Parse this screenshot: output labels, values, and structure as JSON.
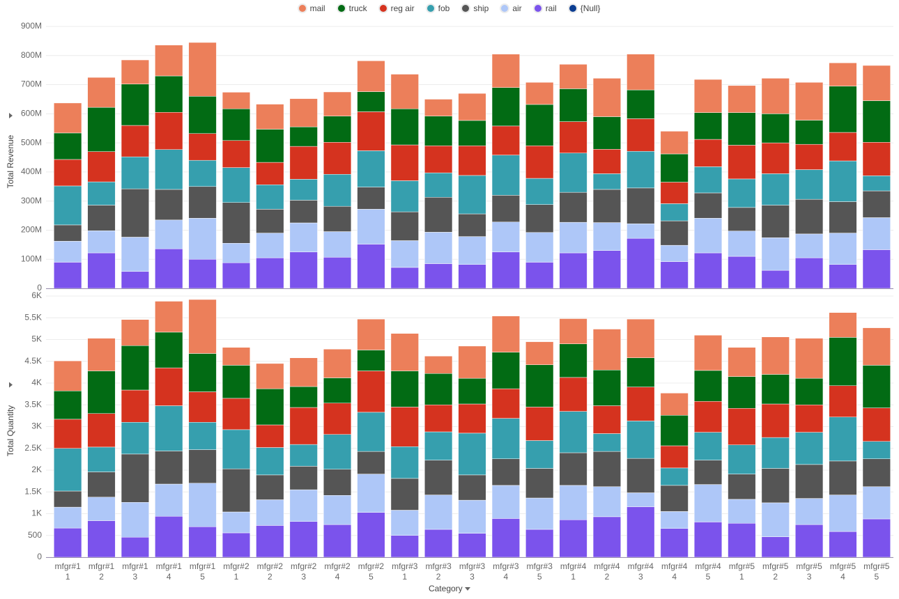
{
  "chart_data": [
    {
      "type": "bar",
      "stacked": true,
      "ylabel": "Total Revenue",
      "ylim": [
        0,
        900
      ],
      "yticks": [
        0,
        {
          "value": 100,
          "label": "100M"
        },
        {
          "value": 200,
          "label": "200M"
        },
        {
          "value": 300,
          "label": "300M"
        },
        {
          "value": 400,
          "label": "400M"
        },
        {
          "value": 500,
          "label": "500M"
        },
        {
          "value": 600,
          "label": "600M"
        },
        {
          "value": 700,
          "label": "700M"
        },
        {
          "value": 800,
          "label": "800M"
        },
        {
          "value": 900,
          "label": "900M"
        }
      ],
      "grid": true,
      "series": [
        {
          "name": "mail",
          "color": "#ec7f5a",
          "values": [
            103,
            103,
            83,
            106,
            185,
            57,
            86,
            97,
            83,
            106,
            119,
            58,
            93,
            115,
            76,
            84,
            132,
            123,
            78,
            114,
            93,
            122,
            130,
            80,
            121
          ]
        },
        {
          "name": "truck",
          "color": "#026b14",
          "values": [
            91,
            152,
            142,
            125,
            128,
            109,
            114,
            67,
            90,
            69,
            124,
            102,
            87,
            132,
            142,
            113,
            112,
            99,
            97,
            92,
            112,
            100,
            83,
            159,
            143
          ]
        },
        {
          "name": "reg air",
          "color": "#d5331f",
          "values": [
            91,
            104,
            108,
            128,
            92,
            93,
            77,
            113,
            110,
            134,
            123,
            93,
            102,
            100,
            112,
            108,
            84,
            112,
            74,
            94,
            116,
            106,
            87,
            98,
            115
          ]
        },
        {
          "name": "fob",
          "color": "#369fae",
          "values": [
            134,
            80,
            110,
            137,
            90,
            120,
            84,
            72,
            110,
            125,
            107,
            84,
            132,
            138,
            90,
            135,
            54,
            126,
            59,
            90,
            98,
            108,
            102,
            140,
            52
          ]
        },
        {
          "name": "ship",
          "color": "#555555",
          "values": [
            56,
            88,
            166,
            105,
            109,
            140,
            82,
            78,
            87,
            76,
            99,
            120,
            78,
            92,
            96,
            103,
            114,
            123,
            84,
            87,
            81,
            112,
            119,
            108,
            92
          ]
        },
        {
          "name": "air",
          "color": "#aec7f8",
          "values": [
            72,
            76,
            118,
            99,
            141,
            67,
            85,
            100,
            88,
            120,
            92,
            108,
            96,
            103,
            102,
            105,
            96,
            50,
            56,
            119,
            87,
            112,
            82,
            108,
            110
          ]
        },
        {
          "name": "rail",
          "color": "#7b53ec",
          "values": [
            90,
            122,
            58,
            136,
            100,
            88,
            105,
            125,
            107,
            152,
            72,
            85,
            82,
            125,
            90,
            122,
            130,
            172,
            92,
            122,
            110,
            62,
            105,
            82,
            133
          ]
        },
        {
          "name": "{Null}",
          "color": "#0b3d91",
          "values": [
            null,
            null,
            null,
            null,
            null,
            null,
            null,
            null,
            null,
            null,
            null,
            null,
            null,
            null,
            null,
            null,
            null,
            null,
            null,
            null,
            null,
            null,
            null,
            null,
            null
          ]
        }
      ]
    },
    {
      "type": "bar",
      "stacked": true,
      "ylabel": "Total Quantity",
      "xlabel": "Category",
      "categories": [
        "mfgr#1 1",
        "mfgr#1 2",
        "mfgr#1 3",
        "mfgr#1 4",
        "mfgr#1 5",
        "mfgr#2 1",
        "mfgr#2 2",
        "mfgr#2 3",
        "mfgr#2 4",
        "mfgr#2 5",
        "mfgr#3 1",
        "mfgr#3 2",
        "mfgr#3 3",
        "mfgr#3 4",
        "mfgr#3 5",
        "mfgr#4 1",
        "mfgr#4 2",
        "mfgr#4 3",
        "mfgr#4 4",
        "mfgr#4 5",
        "mfgr#5 1",
        "mfgr#5 2",
        "mfgr#5 3",
        "mfgr#5 4",
        "mfgr#5 5"
      ],
      "ylim": [
        0,
        6000
      ],
      "yticks": [
        0,
        500,
        {
          "value": 1000,
          "label": "1K"
        },
        {
          "value": 1500,
          "label": "1.5K"
        },
        {
          "value": 2000,
          "label": "2K"
        },
        {
          "value": 2500,
          "label": "2.5K"
        },
        {
          "value": 3000,
          "label": "3K"
        },
        {
          "value": 3500,
          "label": "3.5K"
        },
        {
          "value": 4000,
          "label": "4K"
        },
        {
          "value": 4500,
          "label": "4.5K"
        },
        {
          "value": 5000,
          "label": "5K"
        },
        {
          "value": 5500,
          "label": "5.5K"
        },
        {
          "value": 6000,
          "label": "6K"
        }
      ],
      "grid": true,
      "series": [
        {
          "values": [
            690,
            750,
            600,
            710,
            1240,
            410,
            580,
            660,
            660,
            710,
            860,
            400,
            740,
            830,
            530,
            580,
            940,
            890,
            510,
            810,
            670,
            860,
            920,
            570,
            860
          ]
        },
        {
          "values": [
            650,
            980,
            1020,
            820,
            880,
            760,
            830,
            480,
            580,
            480,
            830,
            720,
            590,
            840,
            970,
            770,
            820,
            670,
            700,
            710,
            730,
            680,
            610,
            1110,
            980
          ]
        },
        {
          "values": [
            670,
            770,
            740,
            870,
            700,
            720,
            520,
            850,
            720,
            950,
            910,
            620,
            670,
            680,
            770,
            780,
            640,
            780,
            510,
            710,
            840,
            770,
            630,
            720,
            770
          ]
        },
        {
          "values": [
            980,
            570,
            730,
            1040,
            630,
            900,
            630,
            500,
            800,
            900,
            730,
            650,
            960,
            930,
            640,
            950,
            410,
            860,
            400,
            640,
            670,
            710,
            740,
            1010,
            400
          ]
        },
        {
          "values": [
            370,
            580,
            1110,
            760,
            770,
            990,
            570,
            540,
            600,
            520,
            730,
            800,
            580,
            610,
            680,
            750,
            810,
            790,
            600,
            560,
            580,
            790,
            780,
            780,
            640
          ]
        },
        {
          "values": [
            480,
            540,
            800,
            740,
            1000,
            480,
            590,
            730,
            670,
            880,
            580,
            790,
            760,
            760,
            720,
            790,
            690,
            320,
            390,
            860,
            550,
            780,
            600,
            840,
            740
          ]
        },
        {
          "values": [
            670,
            840,
            460,
            940,
            700,
            560,
            730,
            820,
            750,
            1030,
            500,
            640,
            550,
            890,
            640,
            860,
            930,
            1160,
            660,
            810,
            780,
            470,
            750,
            590,
            880
          ]
        },
        {
          "values": [
            null,
            null,
            null,
            null,
            null,
            null,
            null,
            null,
            null,
            null,
            null,
            null,
            null,
            null,
            null,
            null,
            null,
            null,
            null,
            null,
            null,
            null,
            null,
            null,
            null
          ]
        }
      ]
    }
  ]
}
